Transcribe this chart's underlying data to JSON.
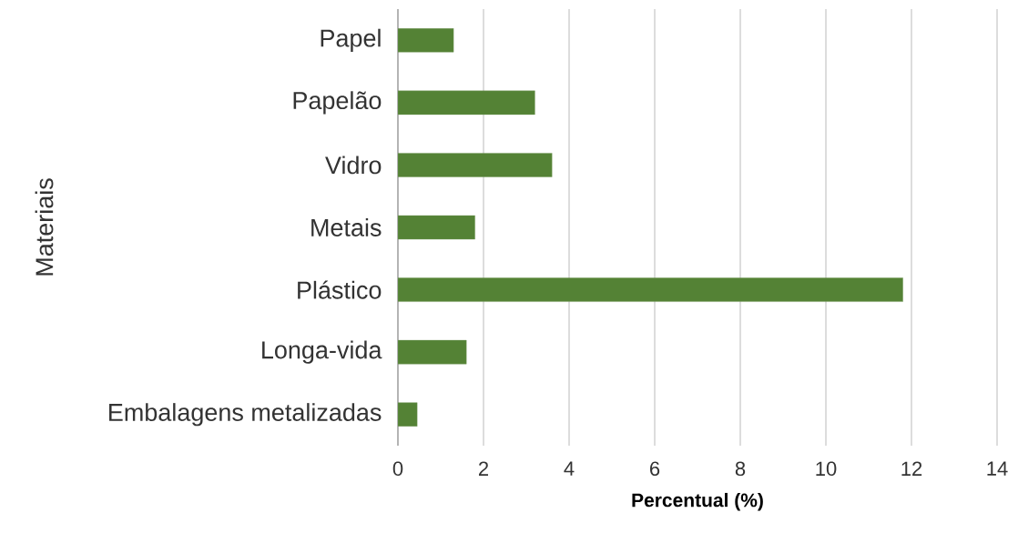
{
  "chart_data": {
    "type": "bar",
    "orientation": "horizontal",
    "categories": [
      "Papel",
      "Papelão",
      "Vidro",
      "Metais",
      "Plástico",
      "Longa-vida",
      "Embalagens metalizadas"
    ],
    "values": [
      1.3,
      3.2,
      3.6,
      1.8,
      11.8,
      1.6,
      0.45
    ],
    "color": "#548235",
    "xlabel": "Percentual (%)",
    "ylabel": "Materiais",
    "xlim": [
      0,
      14
    ],
    "xticks": [
      0,
      2,
      4,
      6,
      8,
      10,
      12,
      14
    ],
    "grid": "x"
  }
}
